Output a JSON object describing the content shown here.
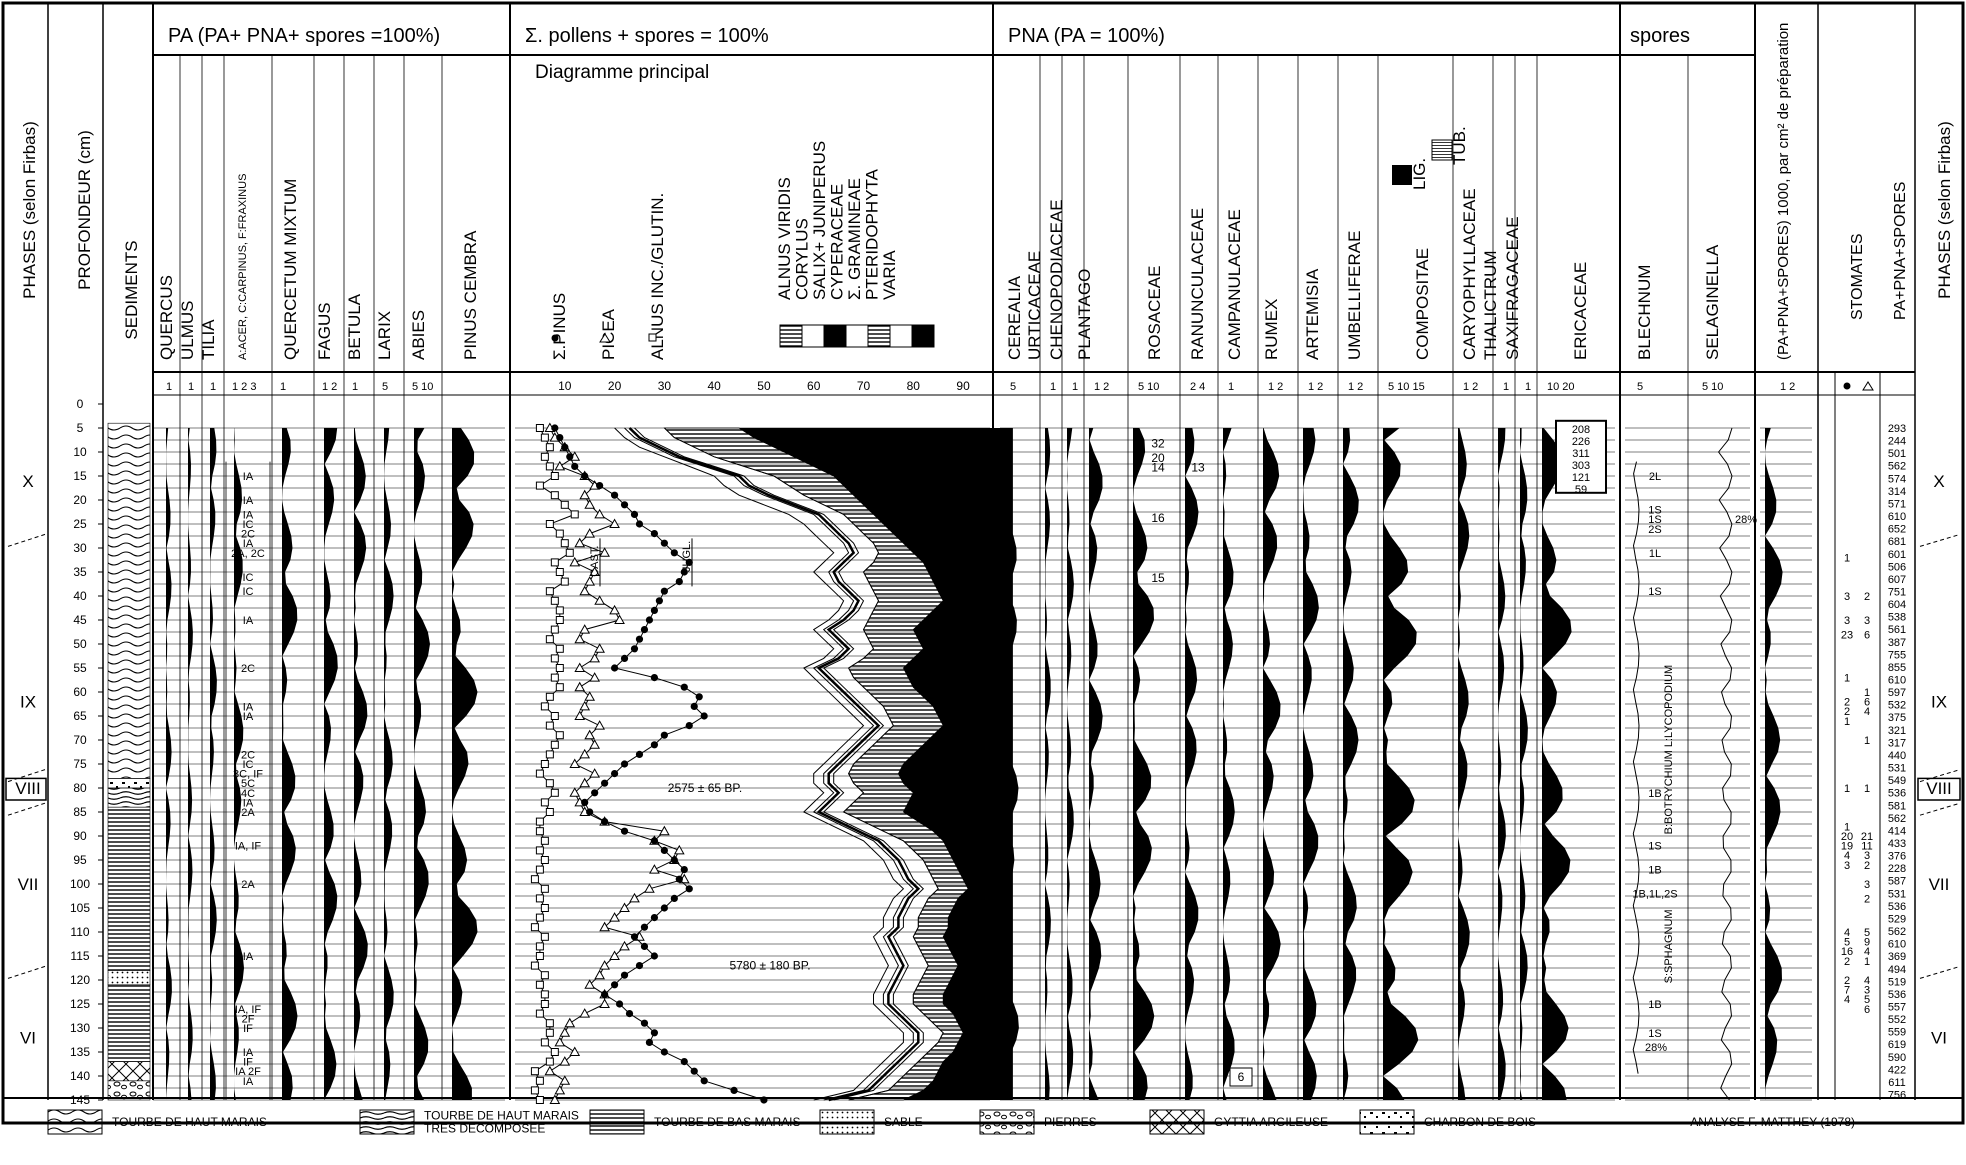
{
  "phase_header": "PHASES (selon Firbas)",
  "depth_header": "PROFONDEUR (cm)",
  "sediment_header": "SEDIMENTS",
  "groups": {
    "pa": "PA (PA+ PNA+ spores =100%)",
    "main": "Σ. pollens + spores = 100%",
    "main_sub": "Diagramme principal",
    "pna": "PNA (PA = 100%)",
    "spores": "spores"
  },
  "pa_taxa": [
    "QUERCUS",
    "ULMUS",
    "TILIA",
    "A:ACER, C:CARPINUS, F:FRAXINUS",
    "QUERCETUM MIXTUM",
    "FAGUS",
    "BETULA",
    "LARIX",
    "ABIES",
    "PINUS CEMBRA"
  ],
  "main_taxa": {
    "pinus": "Σ.PINUS",
    "picea": "PICEA",
    "alnus": "ALNUS INC./GLUTIN.",
    "stack": [
      "ALNUS VIRIDIS",
      "CORYLUS",
      "SALIX+ JUNIPERUS",
      "CYPERACEAE",
      "Σ. GRAMINEAE",
      "PTERIDOPHYTA",
      "VARIA"
    ]
  },
  "pna_taxa": [
    "CEREALIA",
    "URTICACEAE",
    "CHENOPODIACEAE",
    "PLANTAGO",
    "ROSACEAE",
    "RANUNCULACEAE",
    "CAMPANULACEAE",
    "RUMEX",
    "ARTEMISIA",
    "UMBELLIFERAE",
    "COMPOSITAE",
    "CARYOPHYLLACEAE",
    "THALICTRUM",
    "SAXIFRAGACEAE",
    "ERICACEAE"
  ],
  "compositae_legend": {
    "lig": "LIG.",
    "tub": "TUB."
  },
  "spore_taxa": [
    "BLECHNUM",
    "SELAGINELLA"
  ],
  "right_headers": {
    "conc": "(PA+PNA+SPORES) 1000, par cm² de préparation",
    "stomates": "STOMATES",
    "sum": "PA+PNA+SPORES",
    "phase": "PHASES (selon Firbas)"
  },
  "pa_scale": [
    "1",
    "1",
    "1",
    "1 2 3",
    "1",
    "1 2",
    "1",
    "5",
    "5 10"
  ],
  "main_scale": [
    "10",
    "20",
    "30",
    "40",
    "50",
    "60",
    "70",
    "80",
    "90"
  ],
  "pna_scale": [
    "5",
    "1",
    "1",
    "1 2",
    "5 10",
    "2 4",
    "1",
    "1 2",
    "1 2",
    "1 2",
    "5 10 15",
    "1 2",
    "1",
    "1",
    "10 20"
  ],
  "spore_scale": [
    "5",
    "5 10"
  ],
  "conc_scale": "1 2",
  "depths": [
    "0",
    "5",
    "10",
    "15",
    "20",
    "25",
    "30",
    "35",
    "40",
    "45",
    "50",
    "55",
    "60",
    "65",
    "70",
    "75",
    "80",
    "85",
    "90",
    "95",
    "100",
    "105",
    "110",
    "115",
    "120",
    "125",
    "130",
    "135",
    "140",
    "145"
  ],
  "phases": [
    "X",
    "IX",
    "VIII",
    "VII",
    "VI"
  ],
  "afc_labels": [
    {
      "d": 15,
      "t": "IA"
    },
    {
      "d": 20,
      "t": "IA"
    },
    {
      "d": 23,
      "t": "IA"
    },
    {
      "d": 25,
      "t": "IC"
    },
    {
      "d": 27,
      "t": "2C"
    },
    {
      "d": 29,
      "t": "IA"
    },
    {
      "d": 31,
      "t": "2A, 2C"
    },
    {
      "d": 36,
      "t": "IC"
    },
    {
      "d": 39,
      "t": "IC"
    },
    {
      "d": 45,
      "t": "IA"
    },
    {
      "d": 55,
      "t": "2C"
    },
    {
      "d": 63,
      "t": "IA"
    },
    {
      "d": 65,
      "t": "IA"
    },
    {
      "d": 73,
      "t": "2C"
    },
    {
      "d": 75,
      "t": "IC"
    },
    {
      "d": 77,
      "t": "3C, IF"
    },
    {
      "d": 79,
      "t": "5C"
    },
    {
      "d": 81,
      "t": "4C"
    },
    {
      "d": 83,
      "t": "IA"
    },
    {
      "d": 85,
      "t": "2A"
    },
    {
      "d": 92,
      "t": "IA, IF"
    },
    {
      "d": 100,
      "t": "2A"
    },
    {
      "d": 115,
      "t": "IA"
    },
    {
      "d": 126,
      "t": "IA, IF"
    },
    {
      "d": 128,
      "t": "2F"
    },
    {
      "d": 130,
      "t": "IF"
    },
    {
      "d": 135,
      "t": "IA"
    },
    {
      "d": 137,
      "t": "IF"
    },
    {
      "d": 139,
      "t": "IA 2F"
    },
    {
      "d": 141,
      "t": "IA"
    }
  ],
  "annotations": {
    "cast": "CAST.",
    "jugl": "JUGL.",
    "date1": "2575 ± 65 BP.",
    "date2": "5780 ± 180 BP.",
    "selag_pct": "28%",
    "blech_pct": "28%",
    "blech_note": "B:BOTRYCHIUM L:LYCOPODIUM",
    "sphag_note": "S:SPHAGNUM",
    "ros_vals": [
      "32",
      "20",
      "14",
      "16",
      "15"
    ],
    "ran_val": "13",
    "camp_val": "6",
    "eric_vals": [
      "208",
      "226",
      "311",
      "303",
      "121",
      "59"
    ],
    "blech_labels": [
      {
        "d": 15,
        "t": "2L"
      },
      {
        "d": 22,
        "t": "1S"
      },
      {
        "d": 24,
        "t": "1S"
      },
      {
        "d": 26,
        "t": "2S"
      },
      {
        "d": 31,
        "t": "1L"
      },
      {
        "d": 39,
        "t": "1S"
      },
      {
        "d": 81,
        "t": "1B"
      },
      {
        "d": 92,
        "t": "1S"
      },
      {
        "d": 97,
        "t": "1B"
      },
      {
        "d": 102,
        "t": "1B,1L,2S"
      },
      {
        "d": 125,
        "t": "1B"
      },
      {
        "d": 131,
        "t": "1S"
      }
    ]
  },
  "stomates_rows": [
    {
      "d": 32,
      "a": "1",
      "b": ""
    },
    {
      "d": 40,
      "a": "3",
      "b": "2"
    },
    {
      "d": 45,
      "a": "3",
      "b": "3"
    },
    {
      "d": 48,
      "a": "23",
      "b": "6"
    },
    {
      "d": 57,
      "a": "1",
      "b": ""
    },
    {
      "d": 60,
      "a": "",
      "b": "1"
    },
    {
      "d": 62,
      "a": "2",
      "b": "6"
    },
    {
      "d": 64,
      "a": "2",
      "b": "4"
    },
    {
      "d": 66,
      "a": "1",
      "b": ""
    },
    {
      "d": 70,
      "a": "",
      "b": "1"
    },
    {
      "d": 80,
      "a": "1",
      "b": "1"
    },
    {
      "d": 88,
      "a": "1",
      "b": ""
    },
    {
      "d": 90,
      "a": "20",
      "b": "21"
    },
    {
      "d": 92,
      "a": "19",
      "b": "11"
    },
    {
      "d": 94,
      "a": "4",
      "b": "3"
    },
    {
      "d": 96,
      "a": "3",
      "b": "2"
    },
    {
      "d": 100,
      "a": "",
      "b": "3"
    },
    {
      "d": 103,
      "a": "",
      "b": "2"
    },
    {
      "d": 110,
      "a": "4",
      "b": "5"
    },
    {
      "d": 112,
      "a": "5",
      "b": "9"
    },
    {
      "d": 114,
      "a": "16",
      "b": "4"
    },
    {
      "d": 116,
      "a": "2",
      "b": "1"
    },
    {
      "d": 120,
      "a": "2",
      "b": "4"
    },
    {
      "d": 122,
      "a": "7",
      "b": "3"
    },
    {
      "d": 124,
      "a": "4",
      "b": "5"
    },
    {
      "d": 126,
      "a": "",
      "b": "6"
    }
  ],
  "sums": [
    "293",
    "244",
    "501",
    "562",
    "574",
    "314",
    "571",
    "610",
    "652",
    "681",
    "601",
    "506",
    "607",
    "751",
    "604",
    "538",
    "561",
    "387",
    "755",
    "855",
    "610",
    "597",
    "532",
    "375",
    "321",
    "317",
    "440",
    "531",
    "549",
    "536",
    "581",
    "562",
    "414",
    "433",
    "376",
    "228",
    "587",
    "531",
    "536",
    "529",
    "562",
    "610",
    "369",
    "494",
    "519",
    "536",
    "557",
    "552",
    "559",
    "619",
    "590",
    "422",
    "611",
    "756"
  ],
  "legend": [
    {
      "key": "wave",
      "label": "TOURBE DE HAUT MARAIS"
    },
    {
      "key": "dwave",
      "label": "TOURBE DE HAUT MARAIS TRES DECOMPOSEE"
    },
    {
      "key": "hlines",
      "label": "TOURBE DE BAS MARAIS"
    },
    {
      "key": "dots",
      "label": "SABLE"
    },
    {
      "key": "stones",
      "label": "PIERRES"
    },
    {
      "key": "gyttia",
      "label": "GYTTIA ARGILEUSE"
    },
    {
      "key": "charcoal",
      "label": "CHARBON DE BOIS"
    }
  ],
  "credit": "ANALYSE F. MATTHEY (1978)",
  "chart_data": {
    "type": "area",
    "title": "",
    "xlabel": "Σ. pollens + spores = 100%",
    "ylabel": "PROFONDEUR (cm)",
    "ylim": [
      0,
      145
    ],
    "xlim": [
      0,
      100
    ],
    "depth": [
      5,
      7,
      9,
      11,
      13,
      15,
      17,
      19,
      21,
      23,
      25,
      27,
      29,
      31,
      33,
      35,
      37,
      39,
      41,
      43,
      45,
      47,
      49,
      51,
      53,
      55,
      57,
      59,
      61,
      63,
      65,
      67,
      69,
      71,
      73,
      75,
      77,
      79,
      81,
      83,
      85,
      87,
      89,
      91,
      93,
      95,
      97,
      99,
      101,
      103,
      105,
      107,
      109,
      111,
      113,
      115,
      117,
      119,
      121,
      123,
      125,
      127,
      129,
      131,
      133,
      135,
      137,
      139,
      141,
      143,
      145
    ],
    "series": [
      {
        "name": "Σ.PINUS",
        "values": [
          5,
          6,
          7,
          6,
          7,
          8,
          5,
          8,
          10,
          12,
          7,
          9,
          10,
          11,
          8,
          9,
          10,
          7,
          8,
          9,
          9,
          8,
          7,
          9,
          8,
          9,
          8,
          9,
          7,
          6,
          8,
          7,
          9,
          8,
          7,
          6,
          5,
          7,
          8,
          6,
          7,
          5,
          5,
          6,
          5,
          6,
          5,
          4,
          6,
          5,
          6,
          5,
          4,
          6,
          5,
          5,
          4,
          6,
          5,
          6,
          6,
          5,
          7,
          7,
          6,
          8,
          7,
          4,
          5,
          4,
          5
        ]
      },
      {
        "name": "PICEA",
        "values": [
          7,
          8,
          10,
          12,
          9,
          14,
          16,
          14,
          15,
          17,
          20,
          15,
          13,
          18,
          12,
          16,
          15,
          14,
          17,
          20,
          21,
          14,
          13,
          17,
          16,
          13,
          16,
          13,
          15,
          14,
          13,
          17,
          15,
          16,
          14,
          12,
          16,
          14,
          12,
          13,
          14,
          18,
          30,
          28,
          33,
          32,
          28,
          34,
          27,
          24,
          22,
          20,
          18,
          25,
          22,
          20,
          18,
          17,
          15,
          18,
          18,
          14,
          11,
          10,
          9,
          12,
          10,
          7,
          10,
          9,
          8
        ]
      },
      {
        "name": "ALNUS INC./GLUTIN.",
        "values": [
          8,
          9,
          10,
          11,
          12,
          14,
          17,
          20,
          22,
          24,
          25,
          28,
          30,
          32,
          35,
          34,
          33,
          30,
          29,
          28,
          27,
          26,
          25,
          24,
          22,
          20,
          28,
          34,
          37,
          36,
          38,
          35,
          30,
          28,
          25,
          22,
          20,
          18,
          16,
          14,
          15,
          18,
          22,
          28,
          30,
          32,
          34,
          33,
          35,
          32,
          30,
          28,
          26,
          24,
          26,
          28,
          25,
          22,
          20,
          18,
          21,
          23,
          26,
          28,
          27,
          30,
          34,
          36,
          38,
          44,
          50
        ]
      },
      {
        "name": "ALNUS VIRIDIS",
        "values": [
          20,
          22,
          25,
          30,
          35,
          40,
          42,
          45,
          50,
          55,
          58,
          60,
          62,
          64,
          62,
          60,
          62,
          64,
          66,
          65,
          63,
          60,
          62,
          64,
          62,
          58,
          60,
          62,
          64,
          66,
          68,
          70,
          68,
          66,
          64,
          62,
          60,
          60,
          62,
          60,
          58,
          62,
          66,
          70,
          72,
          74,
          75,
          76,
          78,
          76,
          75,
          74,
          74,
          72,
          73,
          74,
          75,
          74,
          73,
          72,
          72,
          74,
          76,
          78,
          78,
          76,
          74,
          72,
          70,
          68,
          60
        ]
      },
      {
        "name": "CORYLUS",
        "values": [
          22,
          24,
          28,
          32,
          38,
          44,
          46,
          50,
          55,
          60,
          62,
          64,
          66,
          67,
          65,
          63,
          64,
          66,
          68,
          67,
          65,
          62,
          64,
          66,
          64,
          60,
          62,
          64,
          66,
          68,
          70,
          72,
          70,
          68,
          66,
          64,
          62,
          62,
          64,
          62,
          60,
          64,
          68,
          72,
          74,
          76,
          77,
          78,
          80,
          78,
          77,
          76,
          76,
          74,
          75,
          76,
          77,
          76,
          75,
          74,
          74,
          76,
          78,
          80,
          80,
          78,
          76,
          74,
          72,
          70,
          62
        ]
      },
      {
        "name": "SALIX+ JUNIPERUS",
        "values": [
          23,
          25,
          29,
          33,
          39,
          45,
          47,
          51,
          56,
          61,
          63,
          65,
          67,
          68,
          66,
          64,
          65,
          67,
          69,
          68,
          66,
          63,
          65,
          67,
          65,
          61,
          63,
          65,
          67,
          69,
          71,
          73,
          71,
          69,
          67,
          65,
          63,
          63,
          65,
          63,
          61,
          65,
          69,
          73,
          75,
          77,
          78,
          79,
          81,
          79,
          78,
          77,
          77,
          75,
          76,
          77,
          78,
          77,
          76,
          75,
          75,
          77,
          79,
          81,
          81,
          79,
          77,
          75,
          73,
          71,
          63
        ]
      },
      {
        "name": "CYPERACEAE",
        "values": [
          24,
          26,
          30,
          34,
          40,
          46,
          48,
          52,
          57,
          62,
          64,
          66,
          68,
          69,
          67,
          65,
          66,
          68,
          70,
          69,
          67,
          64,
          66,
          68,
          66,
          62,
          64,
          66,
          68,
          70,
          72,
          74,
          72,
          70,
          68,
          66,
          64,
          64,
          66,
          64,
          62,
          66,
          70,
          74,
          76,
          78,
          79,
          80,
          82,
          80,
          79,
          78,
          78,
          76,
          77,
          78,
          79,
          78,
          77,
          76,
          76,
          78,
          80,
          82,
          82,
          80,
          78,
          76,
          74,
          72,
          64
        ]
      },
      {
        "name": "Σ. GRAMINEAE",
        "values": [
          30,
          32,
          36,
          40,
          46,
          52,
          55,
          58,
          62,
          66,
          68,
          70,
          72,
          73,
          72,
          70,
          71,
          72,
          73,
          72,
          71,
          70,
          71,
          72,
          70,
          67,
          68,
          70,
          72,
          74,
          75,
          76,
          74,
          72,
          70,
          68,
          67,
          68,
          70,
          68,
          66,
          70,
          74,
          78,
          80,
          82,
          83,
          84,
          85,
          83,
          82,
          81,
          81,
          80,
          81,
          82,
          83,
          82,
          81,
          80,
          80,
          82,
          84,
          86,
          85,
          83,
          81,
          79,
          77,
          75,
          67
        ]
      },
      {
        "name": "PTERIDOPHYTA",
        "values": [
          45,
          48,
          52,
          56,
          60,
          64,
          66,
          68,
          70,
          72,
          74,
          76,
          78,
          80,
          82,
          83,
          84,
          85,
          86,
          84,
          82,
          80,
          81,
          82,
          80,
          78,
          79,
          80,
          82,
          84,
          85,
          86,
          84,
          82,
          80,
          78,
          77,
          78,
          80,
          79,
          78,
          81,
          84,
          86,
          87,
          88,
          89,
          90,
          91,
          89,
          88,
          87,
          87,
          86,
          87,
          88,
          89,
          88,
          87,
          86,
          86,
          88,
          89,
          90,
          89,
          88,
          86,
          85,
          84,
          82,
          78
        ]
      }
    ]
  }
}
